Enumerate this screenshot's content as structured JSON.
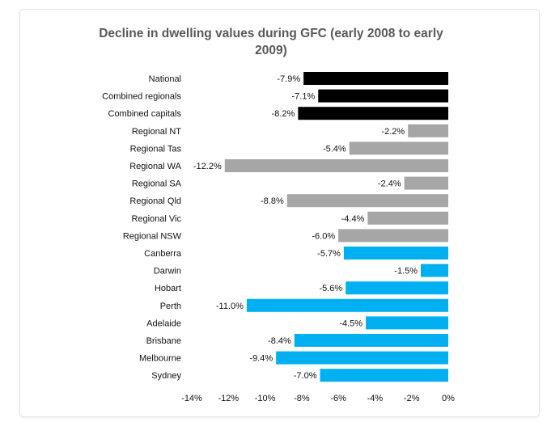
{
  "chart_data": {
    "type": "bar",
    "orientation": "horizontal",
    "title": "Decline in dwelling values during GFC (early 2008 to early 2009)",
    "xlim": [
      -14,
      0
    ],
    "xticks": [
      "-14%",
      "-12%",
      "-10%",
      "-8%",
      "-6%",
      "-4%",
      "-2%",
      "0%"
    ],
    "categories": [
      "National",
      "Combined regionals",
      "Combined capitals",
      "Regional NT",
      "Regional Tas",
      "Regional WA",
      "Regional SA",
      "Regional Qld",
      "Regional Vic",
      "Regional NSW",
      "Canberra",
      "Darwin",
      "Hobart",
      "Perth",
      "Adelaide",
      "Brisbane",
      "Melbourne",
      "Sydney"
    ],
    "values": [
      -7.9,
      -7.1,
      -8.2,
      -2.2,
      -5.4,
      -12.2,
      -2.4,
      -8.8,
      -4.4,
      -6.0,
      -5.7,
      -1.5,
      -5.6,
      -11.0,
      -4.5,
      -8.4,
      -9.4,
      -7.0
    ],
    "labels": [
      "-7.9%",
      "-7.1%",
      "-8.2%",
      "-2.2%",
      "-5.4%",
      "-12.2%",
      "-2.4%",
      "-8.8%",
      "-4.4%",
      "-6.0%",
      "-5.7%",
      "-1.5%",
      "-5.6%",
      "-11.0%",
      "-4.5%",
      "-8.4%",
      "-9.4%",
      "-7.0%"
    ],
    "bar_colors": [
      "#000000",
      "#000000",
      "#000000",
      "#a6a6a6",
      "#a6a6a6",
      "#a6a6a6",
      "#a6a6a6",
      "#a6a6a6",
      "#a6a6a6",
      "#a6a6a6",
      "#00b0f0",
      "#00b0f0",
      "#00b0f0",
      "#00b0f0",
      "#00b0f0",
      "#00b0f0",
      "#00b0f0",
      "#00b0f0"
    ],
    "grid": false,
    "legend": "none"
  }
}
